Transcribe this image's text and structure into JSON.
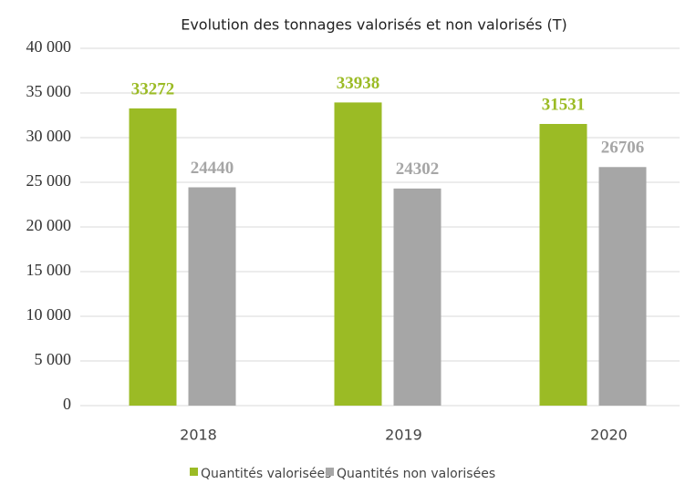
{
  "chart_data": {
    "type": "bar",
    "title": "Evolution des tonnages valorisés et non valorisés (T)",
    "categories": [
      "2018",
      "2019",
      "2020"
    ],
    "series": [
      {
        "name": "Quantités valorisées",
        "color": "#9bbb25",
        "values": [
          33272,
          33938,
          31531
        ]
      },
      {
        "name": "Quantités non valorisées",
        "color": "#a6a6a6",
        "values": [
          24440,
          24302,
          26706
        ]
      }
    ],
    "ylim": [
      0,
      40000
    ],
    "yticks": [
      0,
      {
        "value": 5000,
        "label": "5 000"
      },
      {
        "value": 10000,
        "label": "10 000"
      },
      {
        "value": 15000,
        "label": "15 000"
      },
      {
        "value": 20000,
        "label": "20 000"
      },
      {
        "value": 25000,
        "label": "25 000"
      },
      {
        "value": 30000,
        "label": "30 000"
      },
      {
        "value": 35000,
        "label": "35 000"
      },
      {
        "value": 40000,
        "label": "40 000"
      }
    ],
    "grid": true,
    "legend": "bottom"
  }
}
